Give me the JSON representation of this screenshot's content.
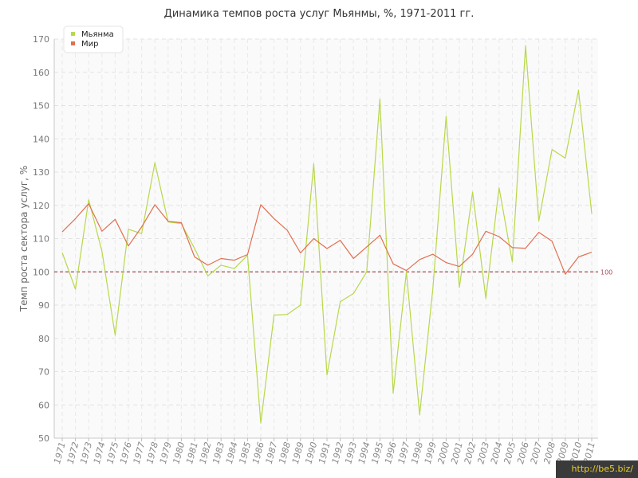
{
  "title": "Динамика темпов роста услуг Мьянмы, %, 1971-2011 гг.",
  "watermark": "http://be5.biz/",
  "chart_data": {
    "type": "line",
    "title": "Динамика темпов роста услуг Мьянмы, %, 1971-2011 гг.",
    "xlabel": "",
    "ylabel": "Темп роста сектора услуг, %",
    "x": [
      "1971",
      "1972",
      "1973",
      "1974",
      "1975",
      "1976",
      "1977",
      "1978",
      "1979",
      "1980",
      "1981",
      "1982",
      "1983",
      "1984",
      "1985",
      "1986",
      "1987",
      "1988",
      "1989",
      "1990",
      "1991",
      "1992",
      "1993",
      "1994",
      "1995",
      "1996",
      "1997",
      "1998",
      "1999",
      "2000",
      "2001",
      "2002",
      "2003",
      "2004",
      "2005",
      "2006",
      "2007",
      "2008",
      "2009",
      "2010",
      "2011"
    ],
    "ylim": [
      50,
      170
    ],
    "yticks": [
      50,
      60,
      70,
      80,
      90,
      100,
      110,
      120,
      130,
      140,
      150,
      160,
      170
    ],
    "grid": true,
    "legend_position": "top-left",
    "reference_line": {
      "value": 100,
      "label": "100",
      "color": "#a54d5a"
    },
    "series": [
      {
        "name": "Мьянма",
        "color": "#b8d84a",
        "values": [
          105.8,
          94.8,
          121.7,
          106.2,
          81.0,
          112.8,
          111.5,
          132.8,
          115.0,
          114.5,
          107.0,
          98.8,
          102.0,
          101.0,
          105.0,
          54.5,
          87.0,
          87.2,
          90.0,
          132.5,
          69.0,
          91.0,
          93.5,
          100.0,
          152.0,
          63.5,
          100.0,
          57.0,
          95.0,
          146.8,
          95.3,
          124.0,
          92.0,
          125.3,
          103.0,
          168.0,
          115.3,
          136.8,
          134.2,
          154.6,
          117.5
        ]
      },
      {
        "name": "Мир",
        "color": "#e07050",
        "values": [
          112.0,
          116.0,
          120.5,
          112.2,
          115.8,
          107.8,
          113.5,
          120.2,
          115.2,
          114.8,
          104.5,
          102.0,
          104.0,
          103.5,
          105.2,
          120.2,
          116.0,
          112.5,
          105.7,
          110.0,
          107.0,
          109.5,
          104.0,
          107.5,
          111.0,
          102.4,
          100.4,
          103.7,
          105.3,
          102.8,
          101.6,
          105.3,
          112.2,
          110.6,
          107.3,
          107.1,
          111.9,
          109.2,
          99.3,
          104.5,
          105.9
        ]
      }
    ]
  }
}
